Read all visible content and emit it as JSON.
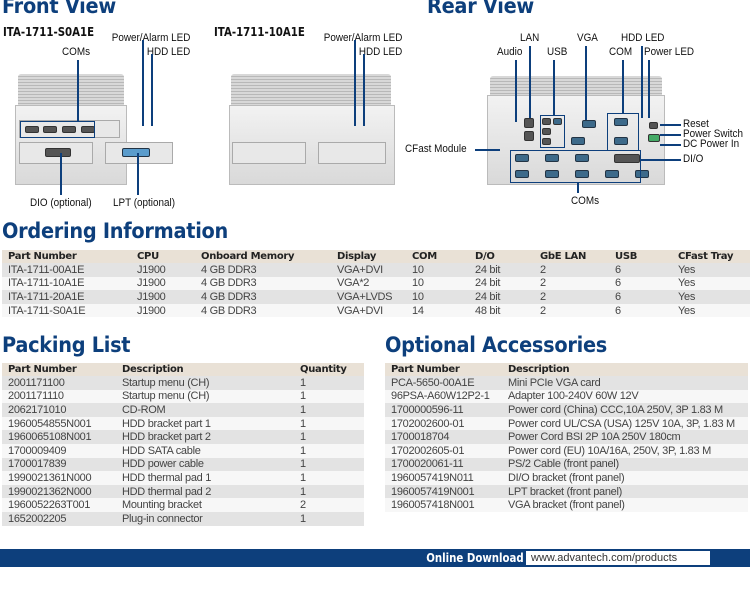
{
  "front_view": {
    "title": "Front View",
    "device1": {
      "model": "ITA-1711-S0A1E",
      "labels": {
        "power_alarm_led": "Power/Alarm LED",
        "hdd_led": "HDD LED",
        "coms": "COMs",
        "dio": "DIO (optional)",
        "lpt": "LPT (optional)"
      }
    },
    "device2": {
      "model": "ITA-1711-10A1E",
      "labels": {
        "power_alarm_led": "Power/Alarm LED",
        "hdd_led": "HDD LED"
      }
    }
  },
  "rear_view": {
    "title": "Rear View",
    "labels": {
      "lan": "LAN",
      "audio": "Audio",
      "usb": "USB",
      "vga": "VGA",
      "com": "COM",
      "hdd_led": "HDD LED",
      "power_led": "Power LED",
      "reset": "Reset",
      "power_switch": "Power Switch",
      "dc_power_in": "DC Power In",
      "dio": "DI/O",
      "cfast_module": "CFast Module",
      "coms": "COMs"
    }
  },
  "ordering": {
    "title": "Ordering Information",
    "headers": [
      "Part Number",
      "CPU",
      "Onboard Memory",
      "Display",
      "COM",
      "D/O",
      "GbE LAN",
      "USB",
      "CFast Tray"
    ],
    "rows": [
      [
        "ITA-1711-00A1E",
        "J1900",
        "4 GB DDR3",
        "VGA+DVI",
        "10",
        "24 bit",
        "2",
        "6",
        "Yes"
      ],
      [
        "ITA-1711-10A1E",
        "J1900",
        "4 GB DDR3",
        "VGA*2",
        "10",
        "24 bit",
        "2",
        "6",
        "Yes"
      ],
      [
        "ITA-1711-20A1E",
        "J1900",
        "4 GB DDR3",
        "VGA+LVDS",
        "10",
        "24 bit",
        "2",
        "6",
        "Yes"
      ],
      [
        "ITA-1711-S0A1E",
        "J1900",
        "4 GB DDR3",
        "VGA+DVI",
        "14",
        "48 bit",
        "2",
        "6",
        "Yes"
      ]
    ]
  },
  "packing": {
    "title": "Packing List",
    "headers": [
      "Part Number",
      "Description",
      "Quantity"
    ],
    "rows": [
      [
        "2001171100",
        "Startup menu (CH)",
        "1"
      ],
      [
        "2001171110",
        "Startup menu (CH)",
        "1"
      ],
      [
        "2062171010",
        "CD-ROM",
        "1"
      ],
      [
        "1960054855N001",
        "HDD bracket part 1",
        "1"
      ],
      [
        "1960065108N001",
        "HDD bracket part 2",
        "1"
      ],
      [
        "1700009409",
        "HDD SATA cable",
        "1"
      ],
      [
        "1700017839",
        "HDD power cable",
        "1"
      ],
      [
        "1990021361N000",
        "HDD thermal pad 1",
        "1"
      ],
      [
        "1990021362N000",
        "HDD thermal pad 2",
        "1"
      ],
      [
        "1960052263T001",
        "Mounting bracket",
        "2"
      ],
      [
        "1652002205",
        "Plug-in connector",
        "1"
      ]
    ]
  },
  "accessories": {
    "title": "Optional Accessories",
    "headers": [
      "Part Number",
      "Description"
    ],
    "rows": [
      [
        "PCA-5650-00A1E",
        "Mini PCIe VGA card"
      ],
      [
        "96PSA-A60W12P2-1",
        "Adapter 100-240V 60W 12V"
      ],
      [
        "1700000596-11",
        "Power cord (China) CCC,10A 250V, 3P 1.83 M"
      ],
      [
        "1702002600-01",
        "Power cord UL/CSA (USA) 125V 10A, 3P, 1.83 M"
      ],
      [
        "1700018704",
        "Power Cord BSI 2P 10A 250V 180cm"
      ],
      [
        "1702002605-01",
        "Power cord (EU) 10A/16A, 250V, 3P, 1.83 M"
      ],
      [
        "1700020061-11",
        "PS/2 Cable (front panel)"
      ],
      [
        "1960057419N011",
        "DI/O bracket (front panel)"
      ],
      [
        "1960057419N001",
        "LPT bracket (front panel)"
      ],
      [
        "1960057418N001",
        "VGA bracket (front panel)"
      ]
    ]
  },
  "footer": {
    "label": "Online Download",
    "url": "www.advantech.com/products"
  },
  "colors": {
    "heading": "#0d3f7c",
    "header_row": "#e9e1d6",
    "row_alt": "#e3e3e3"
  }
}
